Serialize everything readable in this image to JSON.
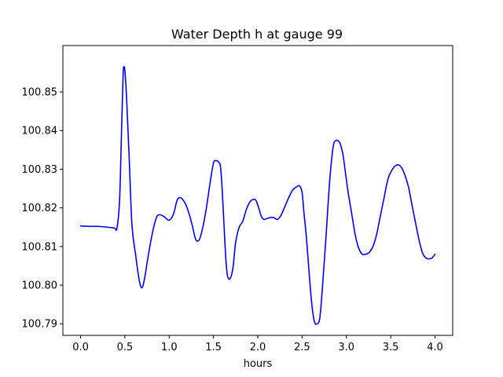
{
  "chart_data": {
    "type": "line",
    "title": "Water Depth h at gauge 99",
    "xlabel": "hours",
    "ylabel": "",
    "xlim": [
      -0.2,
      4.2
    ],
    "ylim": [
      100.787,
      100.862
    ],
    "xticks": [
      0.0,
      0.5,
      1.0,
      1.5,
      2.0,
      2.5,
      3.0,
      3.5,
      4.0
    ],
    "xtick_labels": [
      "0.0",
      "0.5",
      "1.0",
      "1.5",
      "2.0",
      "2.5",
      "3.0",
      "3.5",
      "4.0"
    ],
    "yticks": [
      100.79,
      100.8,
      100.81,
      100.82,
      100.83,
      100.84,
      100.85
    ],
    "ytick_labels": [
      "100.79",
      "100.80",
      "100.81",
      "100.82",
      "100.83",
      "100.84",
      "100.85"
    ],
    "grid": false,
    "series": [
      {
        "color": "#0000ff",
        "x": [
          0.0,
          0.1,
          0.2,
          0.3,
          0.38,
          0.41,
          0.44,
          0.46,
          0.48,
          0.49,
          0.5,
          0.52,
          0.55,
          0.58,
          0.62,
          0.66,
          0.69,
          0.72,
          0.77,
          0.82,
          0.86,
          0.9,
          0.95,
          1.0,
          1.05,
          1.09,
          1.13,
          1.18,
          1.22,
          1.26,
          1.3,
          1.34,
          1.38,
          1.42,
          1.46,
          1.5,
          1.53,
          1.56,
          1.58,
          1.6,
          1.62,
          1.64,
          1.66,
          1.69,
          1.72,
          1.75,
          1.79,
          1.83,
          1.87,
          1.91,
          1.95,
          1.98,
          2.01,
          2.04,
          2.07,
          2.1,
          2.14,
          2.18,
          2.22,
          2.26,
          2.3,
          2.34,
          2.39,
          2.43,
          2.47,
          2.5,
          2.52,
          2.55,
          2.58,
          2.61,
          2.64,
          2.67,
          2.7,
          2.73,
          2.77,
          2.81,
          2.85,
          2.88,
          2.91,
          2.93,
          2.96,
          2.99,
          3.02,
          3.06,
          3.1,
          3.14,
          3.18,
          3.22,
          3.26,
          3.3,
          3.34,
          3.38,
          3.42,
          3.47,
          3.52,
          3.56,
          3.59,
          3.62,
          3.66,
          3.7,
          3.74,
          3.78,
          3.82,
          3.86,
          3.9,
          3.94,
          3.97,
          4.0
        ],
        "y": [
          100.8153,
          100.8152,
          100.8152,
          100.815,
          100.8148,
          100.8147,
          100.822,
          100.838,
          100.8545,
          100.8563,
          100.8555,
          100.848,
          100.832,
          100.8155,
          100.808,
          100.8015,
          100.7993,
          100.8015,
          100.8085,
          100.8145,
          100.8177,
          100.8182,
          100.8176,
          100.8168,
          100.8185,
          100.822,
          100.8226,
          100.8212,
          100.8188,
          100.8155,
          100.8118,
          100.8118,
          100.815,
          100.82,
          100.8262,
          100.8316,
          100.8322,
          100.8318,
          100.8305,
          100.824,
          100.815,
          100.8065,
          100.8022,
          100.8018,
          100.8045,
          100.811,
          100.815,
          100.8165,
          100.8195,
          100.8215,
          100.8222,
          100.8219,
          100.82,
          100.8178,
          100.817,
          100.8172,
          100.8175,
          100.8175,
          100.817,
          100.818,
          100.82,
          100.8222,
          100.8245,
          100.8253,
          100.8257,
          100.824,
          100.819,
          100.812,
          100.803,
          100.795,
          100.7905,
          100.79,
          100.7915,
          100.7995,
          100.8125,
          100.8265,
          100.8357,
          100.8374,
          100.8373,
          100.8366,
          100.834,
          100.829,
          100.824,
          100.8185,
          100.813,
          100.8095,
          100.808,
          100.808,
          100.8085,
          100.81,
          100.813,
          100.8175,
          100.822,
          100.8275,
          100.83,
          100.831,
          100.8311,
          100.8305,
          100.8285,
          100.8255,
          100.8208,
          100.8162,
          100.8117,
          100.8083,
          100.807,
          100.8068,
          100.8071,
          100.808
        ]
      }
    ]
  }
}
